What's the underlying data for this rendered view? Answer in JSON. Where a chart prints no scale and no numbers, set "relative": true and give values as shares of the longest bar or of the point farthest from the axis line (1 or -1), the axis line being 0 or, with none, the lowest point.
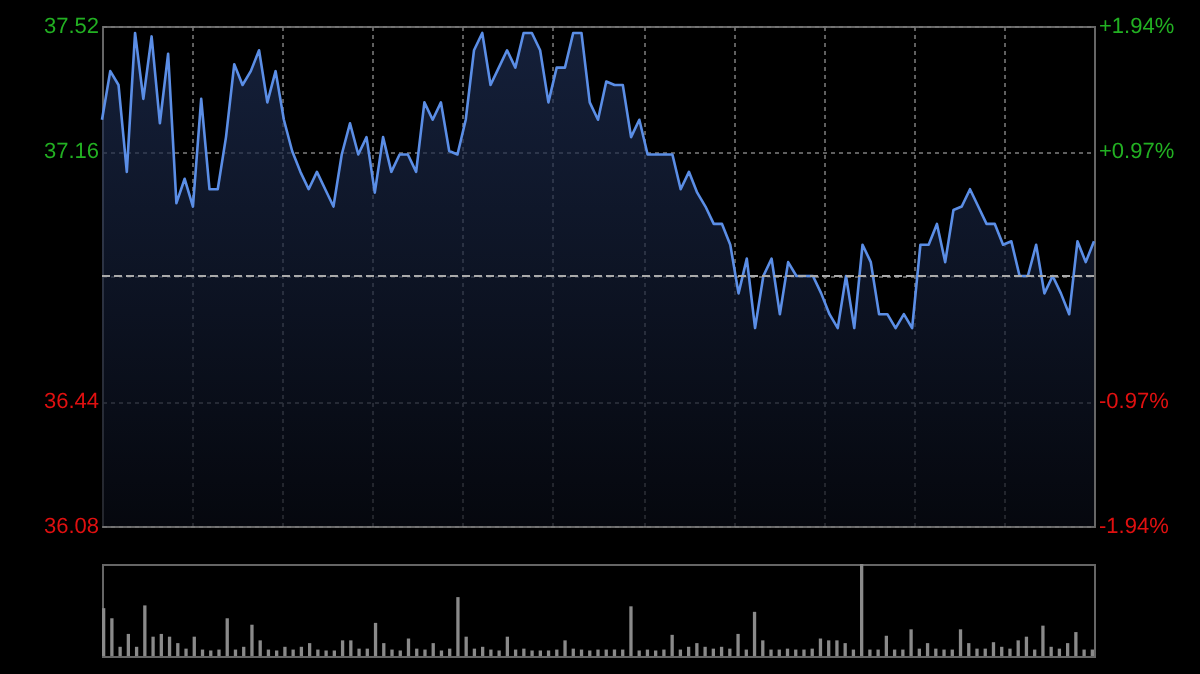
{
  "chart_data": [
    {
      "type": "area",
      "categories": [
        null,
        null,
        null,
        null,
        null,
        null,
        null,
        null,
        null,
        null,
        null,
        null,
        null,
        null,
        null,
        null,
        null,
        null,
        null,
        null,
        null,
        null,
        null,
        null,
        null,
        null,
        null,
        null,
        null,
        null,
        null,
        null,
        null,
        null,
        null,
        null,
        null,
        null,
        null,
        null,
        null,
        null,
        null,
        null,
        null,
        null,
        null,
        null,
        null,
        null,
        null,
        null,
        null,
        null,
        null,
        null,
        null,
        null,
        null,
        null,
        null,
        null,
        null,
        null,
        null,
        null,
        null,
        null,
        null,
        null,
        null,
        null,
        null,
        null,
        null,
        null,
        null,
        null,
        null,
        null,
        null,
        null,
        null,
        null,
        null,
        null,
        null,
        null,
        null,
        null,
        null,
        null,
        null,
        null,
        null,
        null,
        null,
        null,
        null,
        null,
        null,
        null,
        null,
        null,
        null,
        null,
        null,
        null,
        null,
        null,
        null,
        null,
        null,
        null,
        null,
        null,
        null,
        null,
        null,
        null,
        null
      ],
      "series": [
        {
          "color": "#5b8ee6",
          "values": [
            37.25,
            37.39,
            37.35,
            37.1,
            37.5,
            37.31,
            37.49,
            37.24,
            37.44,
            37.01,
            37.08,
            37.0,
            37.31,
            37.05,
            37.05,
            37.2,
            37.41,
            37.35,
            37.39,
            37.45,
            37.3,
            37.39,
            37.25,
            37.16,
            37.1,
            37.05,
            37.1,
            37.05,
            37.0,
            37.15,
            37.24,
            37.15,
            37.2,
            37.04,
            37.2,
            37.1,
            37.15,
            37.15,
            37.1,
            37.3,
            37.25,
            37.3,
            37.16,
            37.15,
            37.25,
            37.45,
            37.5,
            37.35,
            37.4,
            37.45,
            37.4,
            37.5,
            37.5,
            37.45,
            37.3,
            37.4,
            37.4,
            37.5,
            37.5,
            37.3,
            37.25,
            37.36,
            37.35,
            37.35,
            37.2,
            37.25,
            37.15,
            37.15,
            37.15,
            37.15,
            37.05,
            37.1,
            37.04,
            37.0,
            36.95,
            36.95,
            36.89,
            36.75,
            36.85,
            36.65,
            36.8,
            36.85,
            36.69,
            36.84,
            36.8,
            36.8,
            36.8,
            36.75,
            36.69,
            36.65,
            36.8,
            36.65,
            36.89,
            36.84,
            36.69,
            36.69,
            36.65,
            36.69,
            36.65,
            36.89,
            36.89,
            36.95,
            36.84,
            36.99,
            37.0,
            37.05,
            37.0,
            36.95,
            36.95,
            36.89,
            36.9,
            36.8,
            36.8,
            36.89,
            36.75,
            36.8,
            36.75,
            36.69,
            36.9,
            36.84,
            36.9
          ]
        }
      ],
      "ylim": [
        36.08,
        37.52
      ],
      "yticks": [
        {
          "value": 36.08,
          "label": "36.08"
        },
        {
          "value": 36.44,
          "label": "36.44"
        },
        {
          "value": 36.8,
          "label": null
        },
        {
          "value": 37.16,
          "label": "37.16"
        },
        {
          "value": 37.52,
          "label": "37.52"
        }
      ],
      "y2lim": [
        -1.94,
        1.94
      ],
      "y2ticks": [
        {
          "value": -1.94,
          "label": "-1.94%"
        },
        {
          "value": -0.97,
          "label": "-0.97%"
        },
        {
          "value": 0,
          "label": null
        },
        {
          "value": 0.97,
          "label": "+0.97%"
        },
        {
          "value": 1.94,
          "label": "+1.94%"
        }
      ],
      "ref_lines": [
        {
          "axis": "y",
          "value": 36.8,
          "line_style": "dashed"
        }
      ],
      "grid": true,
      "tick_labels": "y"
    },
    {
      "type": "bar",
      "relative": true,
      "tick_labels": false,
      "color": "#8a8a8a",
      "categories": [
        null,
        null,
        null,
        null,
        null,
        null,
        null,
        null,
        null,
        null,
        null,
        null,
        null,
        null,
        null,
        null,
        null,
        null,
        null,
        null,
        null,
        null,
        null,
        null,
        null,
        null,
        null,
        null,
        null,
        null,
        null,
        null,
        null,
        null,
        null,
        null,
        null,
        null,
        null,
        null,
        null,
        null,
        null,
        null,
        null,
        null,
        null,
        null,
        null,
        null,
        null,
        null,
        null,
        null,
        null,
        null,
        null,
        null,
        null,
        null,
        null,
        null,
        null,
        null,
        null,
        null,
        null,
        null,
        null,
        null,
        null,
        null,
        null,
        null,
        null,
        null,
        null,
        null,
        null,
        null,
        null,
        null,
        null,
        null,
        null,
        null,
        null,
        null,
        null,
        null,
        null,
        null,
        null,
        null,
        null,
        null,
        null,
        null,
        null,
        null,
        null,
        null,
        null,
        null,
        null,
        null,
        null,
        null,
        null,
        null,
        null,
        null,
        null,
        null,
        null,
        null,
        null,
        null,
        null,
        null,
        null
      ],
      "values": [
        0.52,
        0.41,
        0.1,
        0.24,
        0.1,
        0.55,
        0.21,
        0.24,
        0.21,
        0.14,
        0.08,
        0.21,
        0.07,
        0.06,
        0.07,
        0.41,
        0.07,
        0.1,
        0.34,
        0.17,
        0.07,
        0.06,
        0.1,
        0.07,
        0.1,
        0.14,
        0.07,
        0.06,
        0.06,
        0.17,
        0.17,
        0.08,
        0.08,
        0.36,
        0.14,
        0.07,
        0.06,
        0.19,
        0.08,
        0.07,
        0.14,
        0.06,
        0.08,
        0.64,
        0.21,
        0.08,
        0.1,
        0.07,
        0.06,
        0.21,
        0.07,
        0.08,
        0.06,
        0.06,
        0.06,
        0.07,
        0.17,
        0.08,
        0.07,
        0.06,
        0.07,
        0.07,
        0.07,
        0.07,
        0.54,
        0.06,
        0.07,
        0.06,
        0.07,
        0.23,
        0.07,
        0.1,
        0.14,
        0.1,
        0.08,
        0.1,
        0.08,
        0.24,
        0.07,
        0.48,
        0.17,
        0.07,
        0.07,
        0.08,
        0.07,
        0.07,
        0.08,
        0.19,
        0.17,
        0.17,
        0.14,
        0.07,
        1,
        0.07,
        0.07,
        0.22,
        0.07,
        0.07,
        0.29,
        0.08,
        0.14,
        0.08,
        0.07,
        0.07,
        0.29,
        0.14,
        0.08,
        0.08,
        0.15,
        0.1,
        0.08,
        0.17,
        0.21,
        0.07,
        0.33,
        0.1,
        0.08,
        0.14,
        0.26,
        0.07,
        0.07
      ]
    }
  ]
}
